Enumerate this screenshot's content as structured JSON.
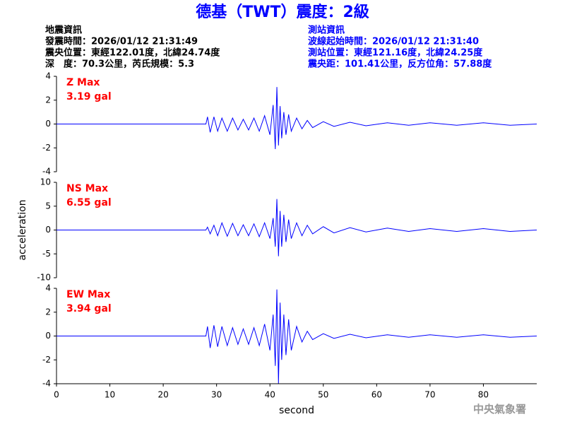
{
  "header": {
    "title": "德基（TWT）震度：2級",
    "left": [
      "地震資訊",
      "發震時間：2026/01/12 21:31:49",
      "震央位置：東經122.01度，北緯24.74度",
      "深　度：70.3公里，芮氏規模：5.3"
    ],
    "right": [
      "測站資訊",
      "波線起始時間：2026/01/12 21:31:40",
      "測站位置：東經121.16度，北緯24.25度",
      "震央距：101.41公里，反方位角：57.88度"
    ]
  },
  "footer": "中央氣象署",
  "chart_data": [
    {
      "type": "line",
      "annotation": [
        "Z Max",
        "3.19 gal"
      ],
      "color": "#0000ff",
      "x": [
        0,
        28,
        28.3,
        28.8,
        29.5,
        30.2,
        31,
        32,
        33,
        34,
        35,
        36,
        37,
        38,
        39,
        40,
        40.6,
        41.0,
        41.3,
        41.6,
        41.9,
        42.2,
        42.6,
        43,
        43.5,
        44,
        45,
        46,
        47,
        48,
        50,
        52,
        55,
        58,
        62,
        66,
        70,
        75,
        80,
        85,
        90
      ],
      "values": [
        0,
        0,
        0.6,
        -0.7,
        0.6,
        -0.6,
        0.5,
        -0.6,
        0.5,
        -0.5,
        0.4,
        -0.5,
        0.5,
        -0.6,
        0.7,
        -0.9,
        1.6,
        -2.1,
        3.1,
        -1.8,
        1.5,
        -1.2,
        1.0,
        -0.9,
        0.8,
        -0.6,
        0.5,
        -0.4,
        0.3,
        -0.3,
        0.2,
        -0.2,
        0.15,
        -0.15,
        0.1,
        -0.1,
        0.1,
        -0.1,
        0.1,
        -0.1,
        0
      ],
      "xlim": [
        0,
        90
      ],
      "ylim": [
        -4,
        4
      ],
      "yticks": [
        -4,
        -2,
        0,
        2,
        4
      ]
    },
    {
      "type": "line",
      "annotation": [
        "NS Max",
        "6.55 gal"
      ],
      "color": "#0000ff",
      "ylabel": "acceleration",
      "x": [
        0,
        28,
        28.3,
        28.8,
        29.5,
        30.2,
        31,
        32,
        33,
        34,
        35,
        36,
        37,
        38,
        39,
        40,
        40.6,
        41.0,
        41.3,
        41.6,
        41.9,
        42.2,
        42.6,
        43,
        43.5,
        44,
        45,
        46,
        47,
        48,
        50,
        52,
        55,
        58,
        62,
        66,
        70,
        75,
        80,
        85,
        90
      ],
      "values": [
        0,
        0,
        0.6,
        -0.8,
        1.0,
        -1.2,
        1.5,
        -1.3,
        1.4,
        -1.2,
        1.1,
        -1.2,
        1.3,
        -1.4,
        1.5,
        -1.8,
        2.5,
        -3.5,
        6.5,
        -5.5,
        4.0,
        -3.5,
        3.2,
        -2.5,
        2.2,
        -1.8,
        1.5,
        -1.2,
        1.0,
        -0.8,
        0.7,
        -0.6,
        0.5,
        -0.4,
        0.4,
        -0.3,
        0.3,
        -0.3,
        0.3,
        -0.3,
        0
      ],
      "xlim": [
        0,
        90
      ],
      "ylim": [
        -10,
        10
      ],
      "yticks": [
        -10,
        -5,
        0,
        5,
        10
      ]
    },
    {
      "type": "line",
      "annotation": [
        "EW Max",
        "3.94 gal"
      ],
      "color": "#0000ff",
      "xlabel": "second",
      "x": [
        0,
        28,
        28.3,
        28.8,
        29.5,
        30.2,
        31,
        32,
        33,
        34,
        35,
        36,
        37,
        38,
        39,
        40,
        40.6,
        41.0,
        41.3,
        41.6,
        41.9,
        42.2,
        42.6,
        43,
        43.5,
        44,
        45,
        46,
        47,
        48,
        50,
        52,
        55,
        58,
        62,
        66,
        70,
        75,
        80,
        85,
        90
      ],
      "values": [
        0,
        0,
        0.8,
        -1.0,
        0.9,
        -0.9,
        0.8,
        -0.8,
        0.7,
        -0.7,
        0.6,
        -0.7,
        0.7,
        -0.8,
        1.0,
        -1.2,
        1.8,
        -2.5,
        3.9,
        -4.0,
        2.8,
        -2.0,
        1.8,
        -1.6,
        1.4,
        -1.2,
        0.8,
        -0.5,
        0.4,
        -0.3,
        0.2,
        -0.2,
        0.15,
        -0.15,
        0.1,
        -0.1,
        0.1,
        -0.1,
        0.1,
        -0.1,
        0
      ],
      "xlim": [
        0,
        90
      ],
      "ylim": [
        -4,
        4
      ],
      "yticks": [
        -4,
        -2,
        0,
        2,
        4
      ],
      "xticks": [
        0,
        10,
        20,
        30,
        40,
        50,
        60,
        70,
        80
      ]
    }
  ]
}
